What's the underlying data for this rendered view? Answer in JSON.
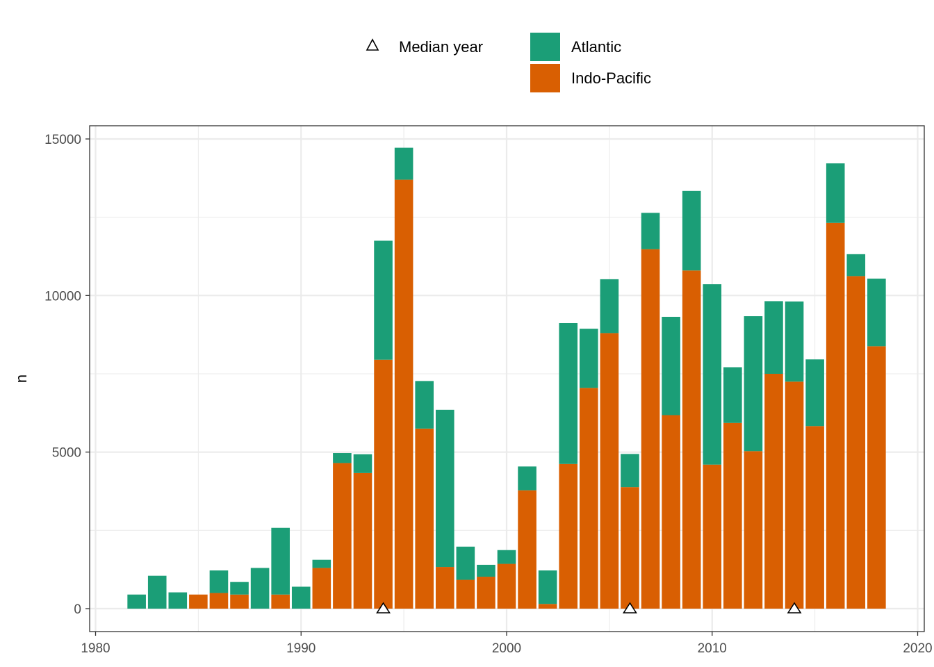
{
  "chart_data": {
    "type": "bar",
    "stacked": true,
    "title": "",
    "xlabel": "",
    "ylabel": "n",
    "xlim": [
      1980,
      2020
    ],
    "ylim": [
      0,
      15000
    ],
    "x_ticks": [
      1980,
      1990,
      2000,
      2010,
      2020
    ],
    "y_ticks": [
      0,
      5000,
      10000,
      15000
    ],
    "grid": true,
    "legend_position": "top",
    "categories": [
      1982,
      1983,
      1984,
      1985,
      1986,
      1987,
      1988,
      1989,
      1990,
      1991,
      1992,
      1993,
      1994,
      1995,
      1996,
      1997,
      1998,
      1999,
      2000,
      2001,
      2002,
      2003,
      2004,
      2005,
      2006,
      2007,
      2008,
      2009,
      2010,
      2011,
      2012,
      2013,
      2014,
      2015,
      2016,
      2017,
      2018
    ],
    "series": [
      {
        "name": "Indo-Pacific",
        "color": "#d95f02",
        "values": [
          0,
          0,
          0,
          450,
          500,
          450,
          0,
          450,
          0,
          1300,
          4650,
          4330,
          7950,
          13700,
          5750,
          1330,
          920,
          1020,
          1430,
          3780,
          150,
          4620,
          7050,
          8800,
          3880,
          11480,
          6180,
          10800,
          4600,
          5930,
          5030,
          7500,
          7250,
          5830,
          12320,
          10620,
          8380
        ]
      },
      {
        "name": "Atlantic",
        "color": "#1b9e77",
        "values": [
          450,
          1050,
          520,
          0,
          720,
          400,
          1300,
          2130,
          700,
          260,
          320,
          600,
          3800,
          1020,
          1520,
          5020,
          1060,
          380,
          440,
          760,
          1070,
          4500,
          1890,
          1720,
          1060,
          1160,
          3140,
          2540,
          5760,
          1780,
          4310,
          2320,
          2560,
          2130,
          1900,
          700,
          2160
        ]
      }
    ],
    "markers": {
      "name": "Median year",
      "symbol": "triangle-open",
      "x": [
        1994,
        2006,
        2014
      ],
      "y": [
        0,
        0,
        0
      ]
    }
  }
}
